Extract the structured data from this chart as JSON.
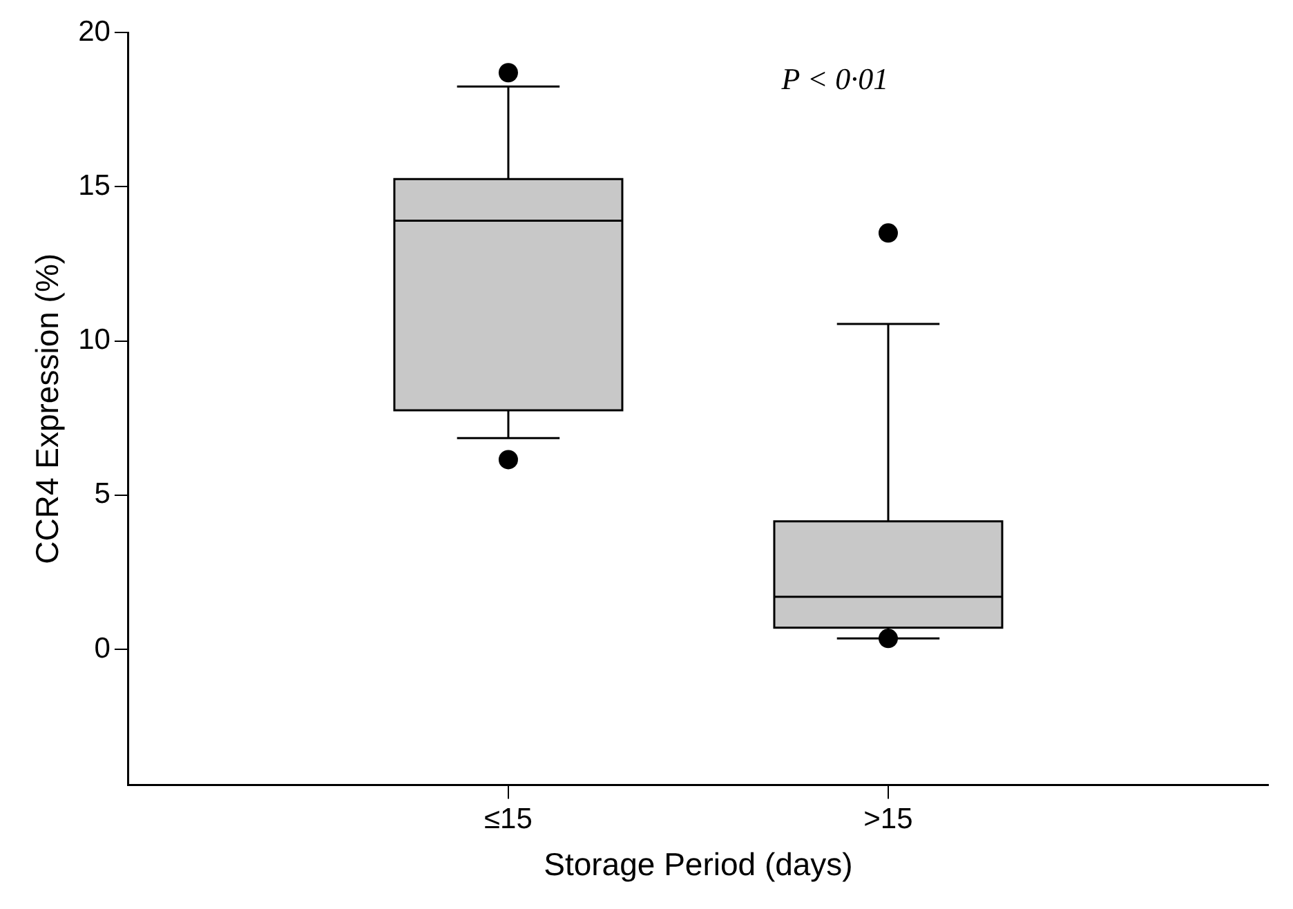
{
  "chart_data": {
    "type": "box",
    "xlabel": "Storage Period (days)",
    "ylabel": "CCR4 Expression (%)",
    "categories": [
      "≤15",
      ">15"
    ],
    "color": "#c8c8c8",
    "boxes": [
      {
        "low": 6.85,
        "q1": 7.75,
        "median": 13.9,
        "q3": 15.25,
        "high": 18.25,
        "outliers": [
          18.7,
          6.15
        ]
      },
      {
        "low": 0.35,
        "q1": 0.7,
        "median": 1.7,
        "q3": 4.15,
        "high": 10.55,
        "outliers": [
          13.5,
          0.35
        ]
      }
    ],
    "ylim": [
      -4.4,
      20
    ],
    "yticks": [
      0,
      5,
      10,
      15,
      20
    ],
    "grid": false,
    "legend": false,
    "annotations": [
      "P < 0·01"
    ]
  }
}
